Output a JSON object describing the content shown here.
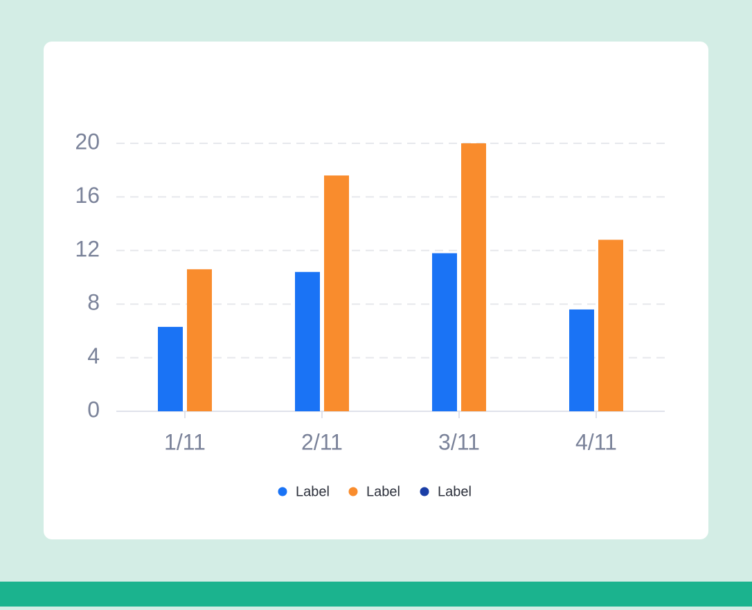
{
  "chart_data": {
    "type": "bar",
    "categories": [
      "1/11",
      "2/11",
      "3/11",
      "4/11"
    ],
    "series": [
      {
        "name": "Label",
        "color": "#1a73f5",
        "values": [
          6.3,
          10.4,
          11.8,
          7.6
        ]
      },
      {
        "name": "Label",
        "color": "#f98c2d",
        "values": [
          10.6,
          17.6,
          20,
          12.8
        ]
      },
      {
        "name": "Label",
        "color": "#1a3ea6",
        "values": [
          null,
          null,
          null,
          null
        ]
      }
    ],
    "ylim": [
      0,
      20
    ],
    "yticks": [
      0,
      4,
      8,
      12,
      16,
      20
    ],
    "grid": true
  }
}
